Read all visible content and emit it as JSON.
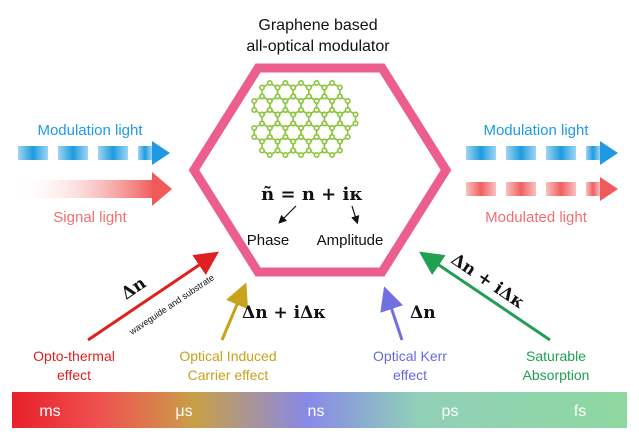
{
  "title": {
    "line1": "Graphene based",
    "line2": "all-optical modulator"
  },
  "input": {
    "modulation_light": "Modulation light",
    "signal_light": "Signal light"
  },
  "output": {
    "modulation_light": "Modulation light",
    "modulated_light": "Modulated light"
  },
  "center": {
    "equation": "ñ = n + iκ",
    "phase": "Phase",
    "amplitude": "Amplitude"
  },
  "effects": {
    "thermal": {
      "symbol": "Δn",
      "note": "waveguide and substrate",
      "line1": "Opto-thermal",
      "line2": "effect",
      "color": "#e02020"
    },
    "carrier": {
      "symbol": "Δn + iΔκ",
      "line1": "Optical Induced",
      "line2": "Carrier effect",
      "color": "#c8a21a"
    },
    "kerr": {
      "symbol": "Δn",
      "line1": "Optical Kerr",
      "line2": "effect",
      "color": "#7070e0"
    },
    "saturable": {
      "symbol": "Δn + iΔκ",
      "line1": "Saturable",
      "line2": "Absorption",
      "color": "#20a050"
    }
  },
  "timescale": {
    "labels": [
      "ms",
      "μs",
      "ns",
      "ps",
      "fs"
    ]
  },
  "colors": {
    "hexagon": "#ec5e8f",
    "graphene": "#8cc63f",
    "modulation": "#1e9be0",
    "signal": "#f06b6b"
  }
}
